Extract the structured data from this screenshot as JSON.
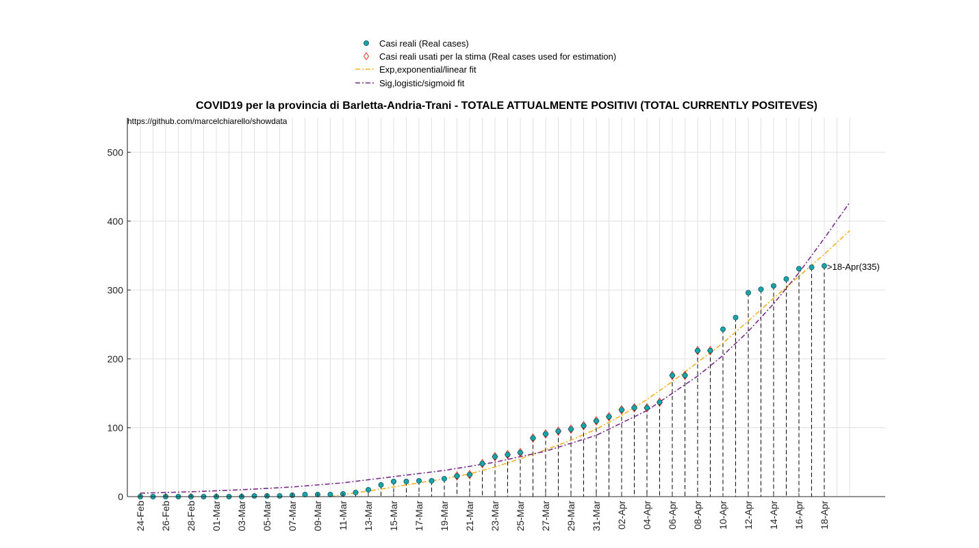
{
  "chart_data": {
    "type": "scatter",
    "title": "COVID19 per la provincia di Barletta-Andria-Trani - TOTALE ATTUALMENTE POSITIVI (TOTAL CURRENTLY POSITEVES)",
    "source_note": "https://github.com/marcelchiarello/showdata",
    "xlabel": "",
    "ylabel": "",
    "ylim": [
      0,
      550
    ],
    "yticks": [
      0,
      100,
      200,
      300,
      400,
      500
    ],
    "x_tick_labels": [
      "24-Feb",
      "26-Feb",
      "28-Feb",
      "01-Mar",
      "03-Mar",
      "05-Mar",
      "07-Mar",
      "09-Mar",
      "11-Mar",
      "13-Mar",
      "15-Mar",
      "17-Mar",
      "19-Mar",
      "21-Mar",
      "23-Mar",
      "25-Mar",
      "27-Mar",
      "29-Mar",
      "31-Mar",
      "02-Apr",
      "04-Apr",
      "06-Apr",
      "08-Apr",
      "10-Apr",
      "12-Apr",
      "14-Apr",
      "16-Apr",
      "18-Apr"
    ],
    "grid": true,
    "legend_position": "top-center",
    "dates": [
      "24-Feb",
      "25-Feb",
      "26-Feb",
      "27-Feb",
      "28-Feb",
      "29-Feb",
      "01-Mar",
      "02-Mar",
      "03-Mar",
      "04-Mar",
      "05-Mar",
      "06-Mar",
      "07-Mar",
      "08-Mar",
      "09-Mar",
      "10-Mar",
      "11-Mar",
      "12-Mar",
      "13-Mar",
      "14-Mar",
      "15-Mar",
      "16-Mar",
      "17-Mar",
      "18-Mar",
      "19-Mar",
      "20-Mar",
      "21-Mar",
      "22-Mar",
      "23-Mar",
      "24-Mar",
      "25-Mar",
      "26-Mar",
      "27-Mar",
      "28-Mar",
      "29-Mar",
      "30-Mar",
      "31-Mar",
      "01-Apr",
      "02-Apr",
      "03-Apr",
      "04-Apr",
      "05-Apr",
      "06-Apr",
      "07-Apr",
      "08-Apr",
      "09-Apr",
      "10-Apr",
      "11-Apr",
      "12-Apr",
      "13-Apr",
      "14-Apr",
      "15-Apr",
      "16-Apr",
      "17-Apr",
      "18-Apr"
    ],
    "series": [
      {
        "name": "Casi reali (Real cases)",
        "kind": "points",
        "color": "#1aa3a8",
        "values": [
          0,
          0,
          0,
          0,
          0,
          0,
          0,
          0,
          0,
          1,
          1,
          1,
          2,
          3,
          3,
          3,
          4,
          6,
          10,
          17,
          22,
          22,
          23,
          23,
          26,
          30,
          32,
          48,
          58,
          61,
          64,
          85,
          91,
          95,
          98,
          103,
          110,
          116,
          126,
          129,
          129,
          137,
          176,
          176,
          212,
          212,
          243,
          260,
          296,
          301,
          306,
          316,
          331,
          333,
          335
        ]
      },
      {
        "name": "Casi reali usati per la stima (Real cases used for estimation)",
        "kind": "diamonds",
        "color": "#e03020",
        "values": [
          null,
          null,
          null,
          null,
          null,
          null,
          null,
          null,
          null,
          null,
          null,
          null,
          null,
          null,
          null,
          null,
          null,
          null,
          null,
          null,
          null,
          null,
          null,
          null,
          null,
          30,
          32,
          48,
          58,
          61,
          64,
          85,
          91,
          95,
          98,
          103,
          110,
          116,
          126,
          129,
          129,
          137,
          176,
          176,
          212,
          212,
          null,
          null,
          null,
          null,
          null,
          null,
          null,
          null,
          null
        ]
      },
      {
        "name": "Exp,exponential/linear fit",
        "kind": "line",
        "color": "#f0b020",
        "x": [
          15,
          16,
          18,
          20,
          22,
          24,
          26,
          28,
          30,
          32,
          34,
          36,
          38,
          40,
          42,
          44,
          46,
          48,
          50,
          52,
          54,
          56
        ],
        "values": [
          0,
          3,
          8,
          14,
          20,
          26,
          33,
          43,
          55,
          68,
          82,
          98,
          118,
          141,
          167,
          195,
          223,
          255,
          288,
          320,
          352,
          386
        ]
      },
      {
        "name": "Sig,logistic/sigmoid fit",
        "kind": "line",
        "color": "#7a2a8a",
        "x": [
          0,
          4,
          8,
          12,
          16,
          20,
          24,
          28,
          32,
          36,
          40,
          42,
          44,
          46,
          48,
          50,
          52,
          54,
          56
        ],
        "values": [
          5,
          7,
          10,
          14,
          20,
          29,
          38,
          50,
          66,
          89,
          125,
          150,
          175,
          205,
          240,
          280,
          325,
          375,
          427
        ]
      }
    ],
    "annotations": [
      {
        "x": "18-Apr",
        "y": 335,
        "text": ">18-Apr(335)"
      }
    ]
  }
}
